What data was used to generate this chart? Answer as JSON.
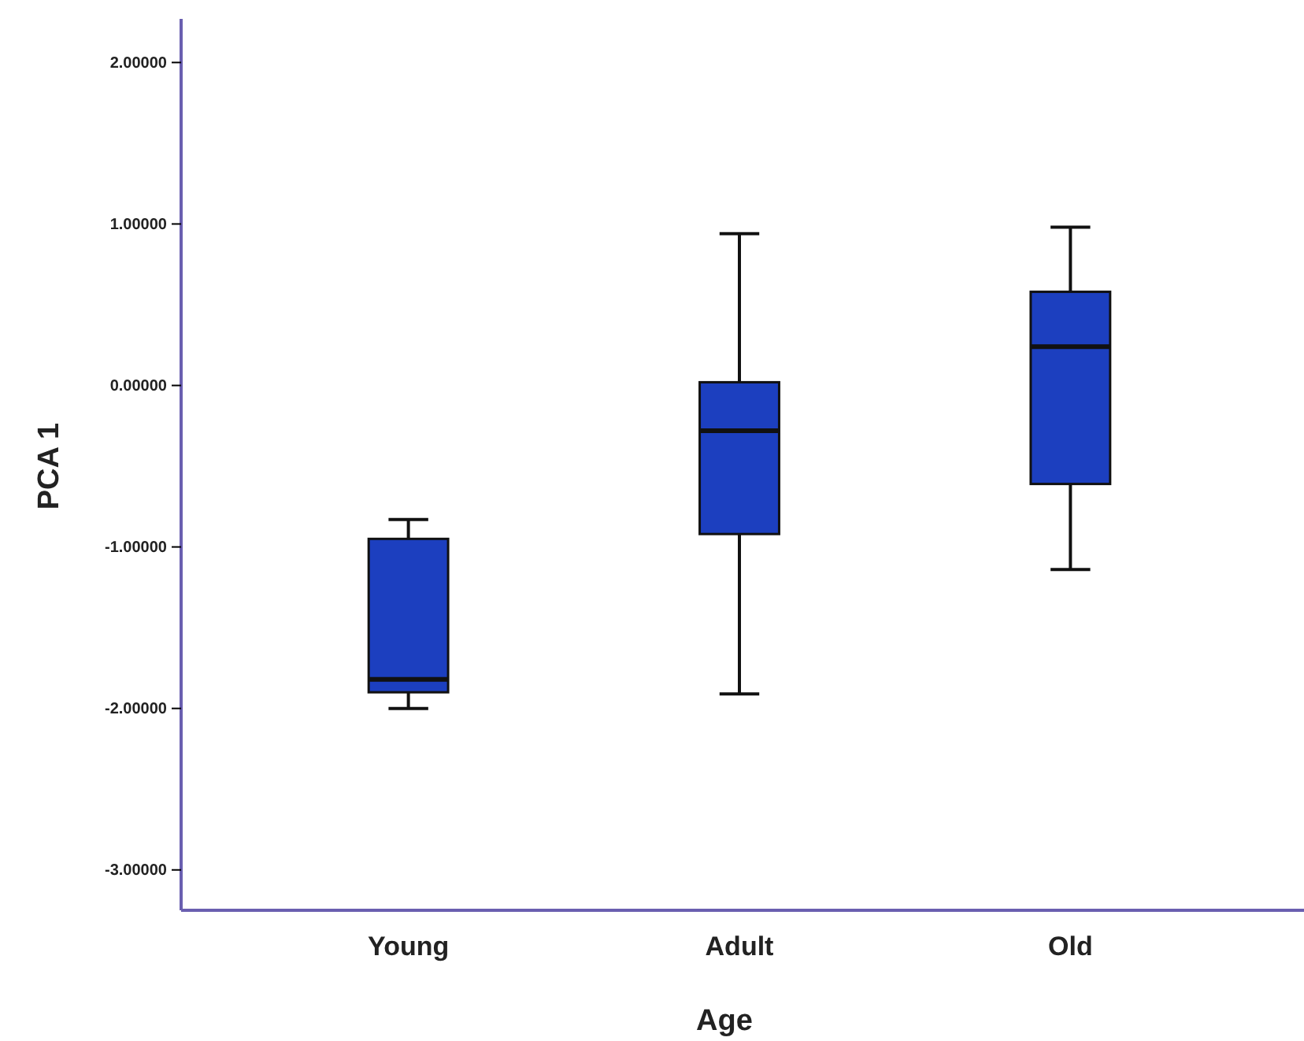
{
  "chart_data": {
    "type": "box",
    "xlabel": "Age",
    "ylabel": "PCA 1",
    "categories": [
      "Young",
      "Adult",
      "Old"
    ],
    "color": "#1c3fbf",
    "boxes": [
      {
        "low": -2.0,
        "q1": -1.9,
        "median": -1.82,
        "q3": -0.95,
        "high": -0.83
      },
      {
        "low": -1.91,
        "q1": -0.92,
        "median": -0.28,
        "q3": 0.02,
        "high": 0.94
      },
      {
        "low": -1.14,
        "q1": -0.61,
        "median": 0.24,
        "q3": 0.58,
        "high": 0.98
      }
    ],
    "ylim": [
      -3.25,
      2.27
    ],
    "yticks": [
      {
        "value": -3,
        "label": "-3.00000"
      },
      {
        "value": -2,
        "label": "-2.00000"
      },
      {
        "value": -1,
        "label": "-1.00000"
      },
      {
        "value": 0,
        "label": "0.00000"
      },
      {
        "value": 1,
        "label": "1.00000"
      },
      {
        "value": 2,
        "label": "2.00000"
      }
    ]
  }
}
